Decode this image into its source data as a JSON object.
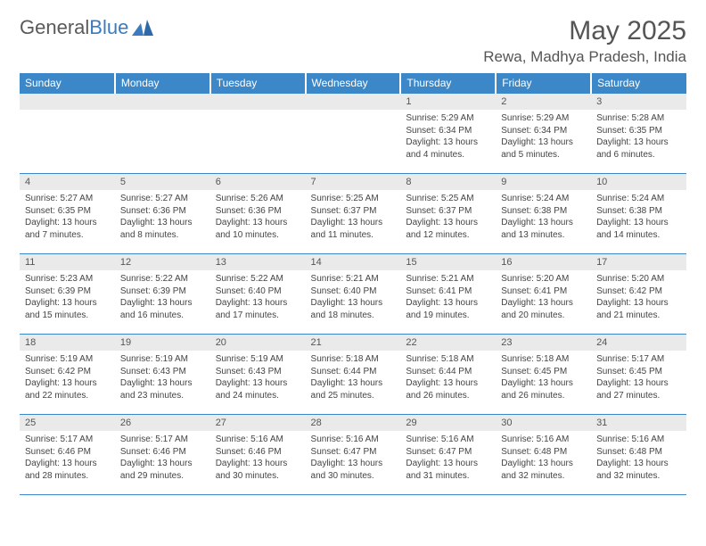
{
  "brand": {
    "word1": "General",
    "word2": "Blue"
  },
  "title": "May 2025",
  "location": "Rewa, Madhya Pradesh, India",
  "header_bg": "#3b87c8",
  "days_of_week": [
    "Sunday",
    "Monday",
    "Tuesday",
    "Wednesday",
    "Thursday",
    "Friday",
    "Saturday"
  ],
  "weeks": [
    [
      null,
      null,
      null,
      null,
      {
        "n": "1",
        "sr": "5:29 AM",
        "ss": "6:34 PM",
        "dl": "13 hours and 4 minutes."
      },
      {
        "n": "2",
        "sr": "5:29 AM",
        "ss": "6:34 PM",
        "dl": "13 hours and 5 minutes."
      },
      {
        "n": "3",
        "sr": "5:28 AM",
        "ss": "6:35 PM",
        "dl": "13 hours and 6 minutes."
      }
    ],
    [
      {
        "n": "4",
        "sr": "5:27 AM",
        "ss": "6:35 PM",
        "dl": "13 hours and 7 minutes."
      },
      {
        "n": "5",
        "sr": "5:27 AM",
        "ss": "6:36 PM",
        "dl": "13 hours and 8 minutes."
      },
      {
        "n": "6",
        "sr": "5:26 AM",
        "ss": "6:36 PM",
        "dl": "13 hours and 10 minutes."
      },
      {
        "n": "7",
        "sr": "5:25 AM",
        "ss": "6:37 PM",
        "dl": "13 hours and 11 minutes."
      },
      {
        "n": "8",
        "sr": "5:25 AM",
        "ss": "6:37 PM",
        "dl": "13 hours and 12 minutes."
      },
      {
        "n": "9",
        "sr": "5:24 AM",
        "ss": "6:38 PM",
        "dl": "13 hours and 13 minutes."
      },
      {
        "n": "10",
        "sr": "5:24 AM",
        "ss": "6:38 PM",
        "dl": "13 hours and 14 minutes."
      }
    ],
    [
      {
        "n": "11",
        "sr": "5:23 AM",
        "ss": "6:39 PM",
        "dl": "13 hours and 15 minutes."
      },
      {
        "n": "12",
        "sr": "5:22 AM",
        "ss": "6:39 PM",
        "dl": "13 hours and 16 minutes."
      },
      {
        "n": "13",
        "sr": "5:22 AM",
        "ss": "6:40 PM",
        "dl": "13 hours and 17 minutes."
      },
      {
        "n": "14",
        "sr": "5:21 AM",
        "ss": "6:40 PM",
        "dl": "13 hours and 18 minutes."
      },
      {
        "n": "15",
        "sr": "5:21 AM",
        "ss": "6:41 PM",
        "dl": "13 hours and 19 minutes."
      },
      {
        "n": "16",
        "sr": "5:20 AM",
        "ss": "6:41 PM",
        "dl": "13 hours and 20 minutes."
      },
      {
        "n": "17",
        "sr": "5:20 AM",
        "ss": "6:42 PM",
        "dl": "13 hours and 21 minutes."
      }
    ],
    [
      {
        "n": "18",
        "sr": "5:19 AM",
        "ss": "6:42 PM",
        "dl": "13 hours and 22 minutes."
      },
      {
        "n": "19",
        "sr": "5:19 AM",
        "ss": "6:43 PM",
        "dl": "13 hours and 23 minutes."
      },
      {
        "n": "20",
        "sr": "5:19 AM",
        "ss": "6:43 PM",
        "dl": "13 hours and 24 minutes."
      },
      {
        "n": "21",
        "sr": "5:18 AM",
        "ss": "6:44 PM",
        "dl": "13 hours and 25 minutes."
      },
      {
        "n": "22",
        "sr": "5:18 AM",
        "ss": "6:44 PM",
        "dl": "13 hours and 26 minutes."
      },
      {
        "n": "23",
        "sr": "5:18 AM",
        "ss": "6:45 PM",
        "dl": "13 hours and 26 minutes."
      },
      {
        "n": "24",
        "sr": "5:17 AM",
        "ss": "6:45 PM",
        "dl": "13 hours and 27 minutes."
      }
    ],
    [
      {
        "n": "25",
        "sr": "5:17 AM",
        "ss": "6:46 PM",
        "dl": "13 hours and 28 minutes."
      },
      {
        "n": "26",
        "sr": "5:17 AM",
        "ss": "6:46 PM",
        "dl": "13 hours and 29 minutes."
      },
      {
        "n": "27",
        "sr": "5:16 AM",
        "ss": "6:46 PM",
        "dl": "13 hours and 30 minutes."
      },
      {
        "n": "28",
        "sr": "5:16 AM",
        "ss": "6:47 PM",
        "dl": "13 hours and 30 minutes."
      },
      {
        "n": "29",
        "sr": "5:16 AM",
        "ss": "6:47 PM",
        "dl": "13 hours and 31 minutes."
      },
      {
        "n": "30",
        "sr": "5:16 AM",
        "ss": "6:48 PM",
        "dl": "13 hours and 32 minutes."
      },
      {
        "n": "31",
        "sr": "5:16 AM",
        "ss": "6:48 PM",
        "dl": "13 hours and 32 minutes."
      }
    ]
  ],
  "labels": {
    "sunrise": "Sunrise: ",
    "sunset": "Sunset: ",
    "daylight": "Daylight: "
  }
}
